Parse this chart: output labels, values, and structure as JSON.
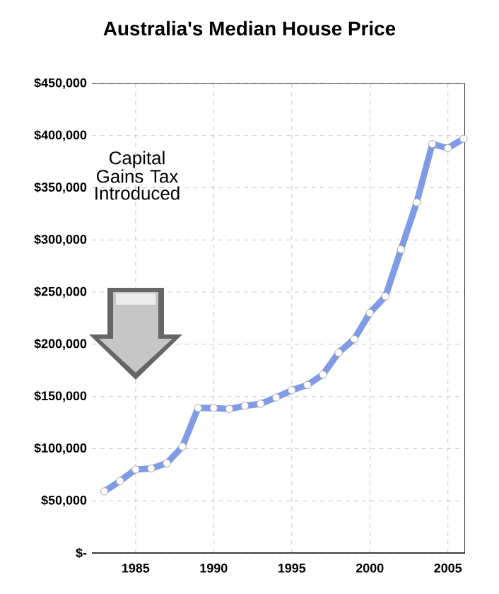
{
  "chart_data": {
    "type": "line",
    "title": "Australia's Median House Price",
    "x": [
      1983,
      1984,
      1985,
      1986,
      1987,
      1988,
      1989,
      1990,
      1991,
      1992,
      1993,
      1994,
      1995,
      1996,
      1997,
      1998,
      1999,
      2000,
      2001,
      2002,
      2003,
      2004,
      2005,
      2006
    ],
    "series": [
      {
        "color": "#7f9be6",
        "values": [
          59000,
          69000,
          80000,
          81000,
          86000,
          102000,
          139000,
          139000,
          138000,
          141000,
          143000,
          149000,
          156000,
          161000,
          171000,
          192000,
          205000,
          230000,
          246000,
          291000,
          336000,
          392000,
          388000,
          397000
        ]
      }
    ],
    "xlim": [
      1982.2,
      2006.1
    ],
    "xticks": [
      1985,
      1990,
      1995,
      2000,
      2005
    ],
    "ylim": [
      0,
      450000
    ],
    "yticks": [
      {
        "value": 0,
        "label": "$-"
      },
      {
        "value": 50000,
        "label": "$50,000"
      },
      {
        "value": 100000,
        "label": "$100,000"
      },
      {
        "value": 150000,
        "label": "$150,000"
      },
      {
        "value": 200000,
        "label": "$200,000"
      },
      {
        "value": 250000,
        "label": "$250,000"
      },
      {
        "value": 300000,
        "label": "$300,000"
      },
      {
        "value": 350000,
        "label": "$350,000"
      },
      {
        "value": 400000,
        "label": "$400,000"
      },
      {
        "value": 450000,
        "label": "$450,000"
      }
    ],
    "grid": true,
    "marker": "circle",
    "line_style": "solid",
    "annotations": [
      "Capital Gains Tax Introduced"
    ]
  }
}
